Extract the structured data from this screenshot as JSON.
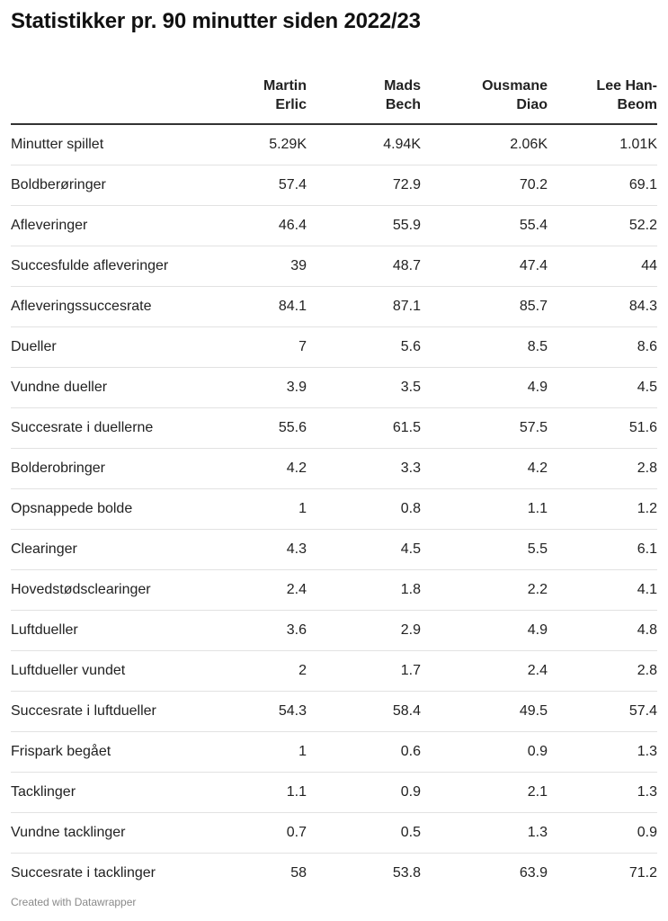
{
  "title": "Statistikker pr. 90 minutter siden 2022/23",
  "footer": "Created with Datawrapper",
  "chart_data": {
    "type": "table",
    "title": "Statistikker pr. 90 minutter siden 2022/23",
    "columns": [
      {
        "name_lines": [
          "Martin",
          "Erlic"
        ]
      },
      {
        "name_lines": [
          "Mads",
          "Bech"
        ]
      },
      {
        "name_lines": [
          "Ousmane",
          "Diao"
        ]
      },
      {
        "name_lines": [
          "Lee Han-",
          "Beom"
        ]
      }
    ],
    "rows": [
      {
        "label": "Minutter spillet",
        "values": [
          "5.29K",
          "4.94K",
          "2.06K",
          "1.01K"
        ]
      },
      {
        "label": "Boldberøringer",
        "values": [
          "57.4",
          "72.9",
          "70.2",
          "69.1"
        ]
      },
      {
        "label": "Afleveringer",
        "values": [
          "46.4",
          "55.9",
          "55.4",
          "52.2"
        ]
      },
      {
        "label": "Succesfulde afleveringer",
        "values": [
          "39",
          "48.7",
          "47.4",
          "44"
        ]
      },
      {
        "label": "Afleveringssuccesrate",
        "values": [
          "84.1",
          "87.1",
          "85.7",
          "84.3"
        ]
      },
      {
        "label": "Dueller",
        "values": [
          "7",
          "5.6",
          "8.5",
          "8.6"
        ]
      },
      {
        "label": "Vundne dueller",
        "values": [
          "3.9",
          "3.5",
          "4.9",
          "4.5"
        ]
      },
      {
        "label": "Succesrate i duellerne",
        "values": [
          "55.6",
          "61.5",
          "57.5",
          "51.6"
        ]
      },
      {
        "label": "Bolderobringer",
        "values": [
          "4.2",
          "3.3",
          "4.2",
          "2.8"
        ]
      },
      {
        "label": "Opsnappede bolde",
        "values": [
          "1",
          "0.8",
          "1.1",
          "1.2"
        ]
      },
      {
        "label": "Clearinger",
        "values": [
          "4.3",
          "4.5",
          "5.5",
          "6.1"
        ]
      },
      {
        "label": "Hovedstødsclearinger",
        "values": [
          "2.4",
          "1.8",
          "2.2",
          "4.1"
        ]
      },
      {
        "label": "Luftdueller",
        "values": [
          "3.6",
          "2.9",
          "4.9",
          "4.8"
        ]
      },
      {
        "label": "Luftdueller vundet",
        "values": [
          "2",
          "1.7",
          "2.4",
          "2.8"
        ]
      },
      {
        "label": "Succesrate i luftdueller",
        "values": [
          "54.3",
          "58.4",
          "49.5",
          "57.4"
        ]
      },
      {
        "label": "Frispark begået",
        "values": [
          "1",
          "0.6",
          "0.9",
          "1.3"
        ]
      },
      {
        "label": "Tacklinger",
        "values": [
          "1.1",
          "0.9",
          "2.1",
          "1.3"
        ]
      },
      {
        "label": "Vundne tacklinger",
        "values": [
          "0.7",
          "0.5",
          "1.3",
          "0.9"
        ]
      },
      {
        "label": "Succesrate i tacklinger",
        "values": [
          "58",
          "53.8",
          "63.9",
          "71.2"
        ]
      }
    ]
  }
}
